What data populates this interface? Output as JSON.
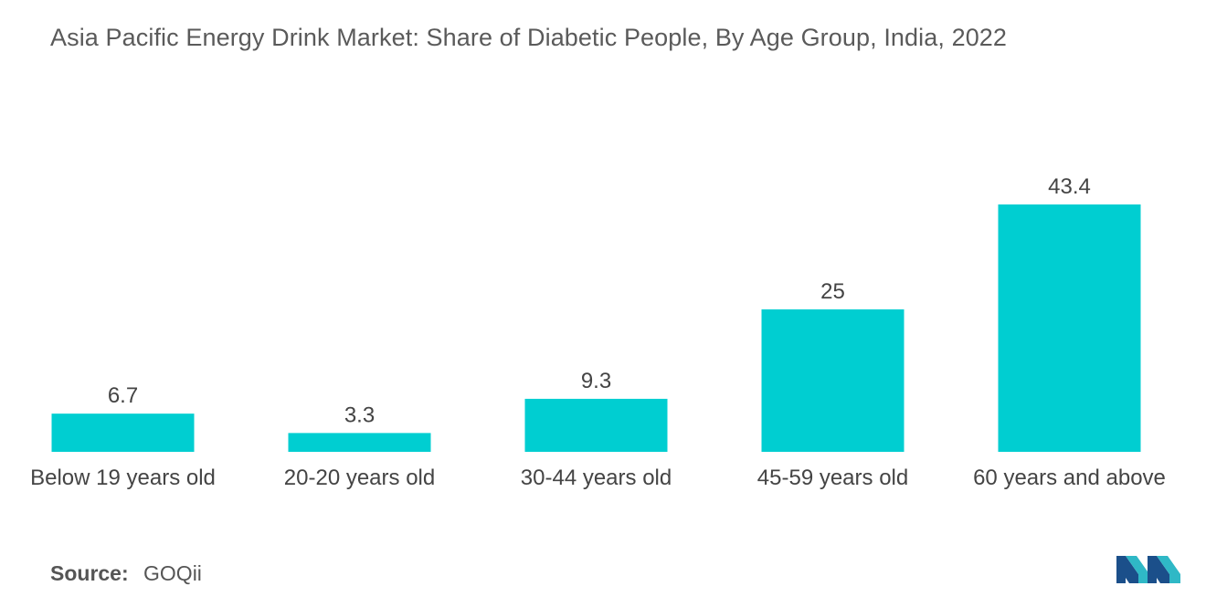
{
  "chart_data": {
    "type": "bar",
    "title": "Asia Pacific Energy Drink Market: Share of Diabetic People, By Age Group, India, 2022",
    "categories": [
      "Below 19 years old",
      "20-20 years old",
      "30-44 years old",
      "45-59 years old",
      "60 years and above"
    ],
    "values": [
      6.7,
      3.3,
      9.3,
      25,
      43.4
    ],
    "value_labels": [
      "6.7",
      "3.3",
      "9.3",
      "25",
      "43.4"
    ],
    "xlabel": "",
    "ylabel": "",
    "ylim": [
      0,
      43.4
    ],
    "grid": false,
    "legend": "none",
    "bar_color": "#00ced1"
  },
  "source": {
    "label": "Source:",
    "value": "GOQii"
  },
  "logo": {
    "icon": "mordor-intelligence-logo-icon",
    "colors": [
      "#1b4f8a",
      "#2fb8c6"
    ]
  }
}
